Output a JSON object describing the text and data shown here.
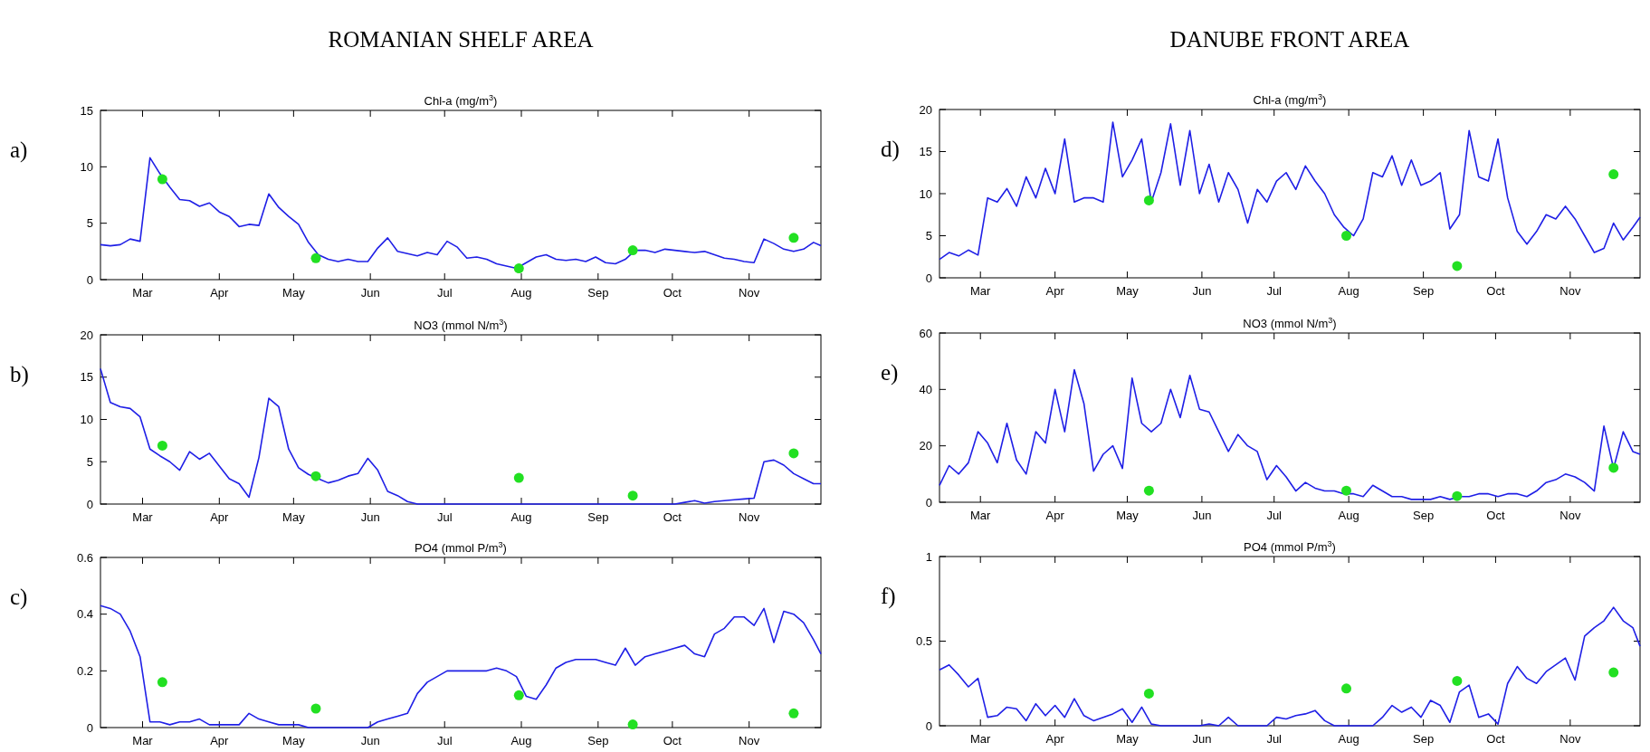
{
  "chart_data": [
    {
      "type": "line",
      "subtitle": "ROMANIAN SHELF AREA",
      "title": "Chl-a (mg/m$^{3}$)",
      "annotations": [
        "a)"
      ],
      "xlim": [
        "--02-12",
        "--11-30"
      ],
      "xticks": [
        {
          "value": "--03-01",
          "label": "Mar"
        },
        {
          "value": "--04-01",
          "label": "Apr"
        },
        {
          "value": "--05-01",
          "label": "May"
        },
        {
          "value": "--06-01",
          "label": "Jun"
        },
        {
          "value": "--07-01",
          "label": "Jul"
        },
        {
          "value": "--08-01",
          "label": "Aug"
        },
        {
          "value": "--09-01",
          "label": "Sep"
        },
        {
          "value": "--10-01",
          "label": "Oct"
        },
        {
          "value": "--11-01",
          "label": "Nov"
        }
      ],
      "ylim": [
        0,
        15
      ],
      "yticks": [
        0,
        5,
        10,
        15
      ],
      "x": [
        "--02-12",
        "--02-16",
        "--02-20",
        "--02-24",
        "--02-28",
        "--03-04",
        "--03-08",
        "--03-12",
        "--03-16",
        "--03-20",
        "--03-24",
        "--03-28",
        "--04-01",
        "--04-05",
        "--04-09",
        "--04-13",
        "--04-17",
        "--04-21",
        "--04-25",
        "--04-29",
        "--05-03",
        "--05-07",
        "--05-11",
        "--05-15",
        "--05-19",
        "--05-23",
        "--05-27",
        "--05-31",
        "--06-04",
        "--06-08",
        "--06-12",
        "--06-16",
        "--06-20",
        "--06-24",
        "--06-28",
        "--07-02",
        "--07-06",
        "--07-10",
        "--07-14",
        "--07-18",
        "--07-22",
        "--07-26",
        "--07-30",
        "--08-03",
        "--08-07",
        "--08-11",
        "--08-15",
        "--08-19",
        "--08-23",
        "--08-27",
        "--08-31",
        "--09-04",
        "--09-08",
        "--09-12",
        "--09-16",
        "--09-20",
        "--09-24",
        "--09-28",
        "--10-02",
        "--10-06",
        "--10-10",
        "--10-14",
        "--10-18",
        "--10-22",
        "--10-26",
        "--10-30",
        "--11-03",
        "--11-07",
        "--11-11",
        "--11-15",
        "--11-19",
        "--11-23",
        "--11-27",
        "--11-30"
      ],
      "series": [
        {
          "color": "#1f1fe6",
          "values": [
            3.1,
            3.0,
            3.1,
            3.6,
            3.4,
            10.8,
            9.4,
            8.2,
            7.1,
            7.0,
            6.5,
            6.8,
            6.0,
            5.6,
            4.7,
            4.9,
            4.8,
            7.6,
            6.4,
            5.6,
            4.9,
            3.3,
            2.2,
            1.8,
            1.6,
            1.8,
            1.6,
            1.6,
            2.8,
            3.7,
            2.5,
            2.3,
            2.1,
            2.4,
            2.2,
            3.4,
            2.9,
            1.9,
            2.0,
            1.8,
            1.4,
            1.2,
            1.0,
            1.5,
            2.0,
            2.2,
            1.8,
            1.7,
            1.8,
            1.6,
            2.0,
            1.5,
            1.4,
            1.8,
            2.6,
            2.6,
            2.4,
            2.7,
            2.6,
            2.5,
            2.4,
            2.5,
            2.2,
            1.9,
            1.8,
            1.6,
            1.5,
            3.6,
            3.2,
            2.7,
            2.5,
            2.7,
            3.3,
            3.0
          ]
        },
        {
          "type": "scatter",
          "color": "#22e022",
          "marker": "circle",
          "x": [
            "--03-09",
            "--05-10",
            "--07-31",
            "--09-15",
            "--11-19"
          ],
          "values": [
            8.9,
            1.9,
            1.0,
            2.6,
            3.7
          ]
        }
      ]
    },
    {
      "type": "line",
      "title": "NO3 (mmol N/m$^{3}$)",
      "annotations": [
        "b)"
      ],
      "xlim": [
        "--02-12",
        "--11-30"
      ],
      "xticks": [
        {
          "value": "--03-01",
          "label": "Mar"
        },
        {
          "value": "--04-01",
          "label": "Apr"
        },
        {
          "value": "--05-01",
          "label": "May"
        },
        {
          "value": "--06-01",
          "label": "Jun"
        },
        {
          "value": "--07-01",
          "label": "Jul"
        },
        {
          "value": "--08-01",
          "label": "Aug"
        },
        {
          "value": "--09-01",
          "label": "Sep"
        },
        {
          "value": "--10-01",
          "label": "Oct"
        },
        {
          "value": "--11-01",
          "label": "Nov"
        }
      ],
      "ylim": [
        0,
        20
      ],
      "yticks": [
        0,
        5,
        10,
        15,
        20
      ],
      "x": [
        "--02-12",
        "--02-16",
        "--02-20",
        "--02-24",
        "--02-28",
        "--03-04",
        "--03-08",
        "--03-12",
        "--03-16",
        "--03-20",
        "--03-24",
        "--03-28",
        "--04-01",
        "--04-05",
        "--04-09",
        "--04-13",
        "--04-17",
        "--04-21",
        "--04-25",
        "--04-29",
        "--05-03",
        "--05-07",
        "--05-11",
        "--05-15",
        "--05-19",
        "--05-23",
        "--05-27",
        "--05-31",
        "--06-04",
        "--06-08",
        "--06-12",
        "--06-16",
        "--06-20",
        "--06-24",
        "--06-28",
        "--07-02",
        "--07-06",
        "--07-10",
        "--07-14",
        "--07-18",
        "--07-22",
        "--07-26",
        "--07-30",
        "--08-03",
        "--08-07",
        "--08-11",
        "--08-15",
        "--08-19",
        "--08-23",
        "--08-27",
        "--08-31",
        "--09-04",
        "--09-08",
        "--09-12",
        "--09-16",
        "--09-20",
        "--09-24",
        "--09-28",
        "--10-02",
        "--10-06",
        "--10-10",
        "--10-14",
        "--10-18",
        "--10-22",
        "--10-26",
        "--10-30",
        "--11-03",
        "--11-07",
        "--11-11",
        "--11-15",
        "--11-19",
        "--11-23",
        "--11-27",
        "--11-30"
      ],
      "series": [
        {
          "color": "#1f1fe6",
          "values": [
            16,
            12,
            11.5,
            11.3,
            10.3,
            6.5,
            5.7,
            5.0,
            4.0,
            6.2,
            5.3,
            6.0,
            4.5,
            3.0,
            2.4,
            0.8,
            5.5,
            12.5,
            11.5,
            6.5,
            4.3,
            3.5,
            3.0,
            2.5,
            2.8,
            3.3,
            3.6,
            5.4,
            4.0,
            1.5,
            1.0,
            0.3,
            0,
            0,
            0,
            0,
            0,
            0,
            0,
            0,
            0,
            0,
            0,
            0,
            0,
            0,
            0,
            0,
            0,
            0,
            0,
            0,
            0,
            0,
            0,
            0,
            0,
            0,
            0,
            0.2,
            0.4,
            0.1,
            0.3,
            0.4,
            0.5,
            0.6,
            0.7,
            5.0,
            5.2,
            4.6,
            3.6,
            3.0,
            2.4,
            2.4
          ]
        },
        {
          "type": "scatter",
          "color": "#22e022",
          "marker": "circle",
          "x": [
            "--03-09",
            "--05-10",
            "--07-31",
            "--09-15",
            "--11-19"
          ],
          "values": [
            6.9,
            3.3,
            3.1,
            1.0,
            6.0
          ]
        }
      ]
    },
    {
      "type": "line",
      "title": "PO4 (mmol P/m$^{3}$)",
      "annotations": [
        "c)"
      ],
      "xlim": [
        "--02-12",
        "--11-30"
      ],
      "xticks": [
        {
          "value": "--03-01",
          "label": "Mar"
        },
        {
          "value": "--04-01",
          "label": "Apr"
        },
        {
          "value": "--05-01",
          "label": "May"
        },
        {
          "value": "--06-01",
          "label": "Jun"
        },
        {
          "value": "--07-01",
          "label": "Jul"
        },
        {
          "value": "--08-01",
          "label": "Aug"
        },
        {
          "value": "--09-01",
          "label": "Sep"
        },
        {
          "value": "--10-01",
          "label": "Oct"
        },
        {
          "value": "--11-01",
          "label": "Nov"
        }
      ],
      "ylim": [
        0,
        0.6
      ],
      "yticks": [
        0,
        0.2,
        0.4,
        0.6
      ],
      "x": [
        "--02-12",
        "--02-16",
        "--02-20",
        "--02-24",
        "--02-28",
        "--03-04",
        "--03-08",
        "--03-12",
        "--03-16",
        "--03-20",
        "--03-24",
        "--03-28",
        "--04-01",
        "--04-05",
        "--04-09",
        "--04-13",
        "--04-17",
        "--04-21",
        "--04-25",
        "--04-29",
        "--05-03",
        "--05-07",
        "--05-11",
        "--05-15",
        "--05-19",
        "--05-23",
        "--05-27",
        "--05-31",
        "--06-04",
        "--06-08",
        "--06-12",
        "--06-16",
        "--06-20",
        "--06-24",
        "--06-28",
        "--07-02",
        "--07-06",
        "--07-10",
        "--07-14",
        "--07-18",
        "--07-22",
        "--07-26",
        "--07-30",
        "--08-03",
        "--08-07",
        "--08-11",
        "--08-15",
        "--08-19",
        "--08-23",
        "--08-27",
        "--08-31",
        "--09-04",
        "--09-08",
        "--09-12",
        "--09-16",
        "--09-20",
        "--09-24",
        "--09-28",
        "--10-02",
        "--10-06",
        "--10-10",
        "--10-14",
        "--10-18",
        "--10-22",
        "--10-26",
        "--10-30",
        "--11-03",
        "--11-07",
        "--11-11",
        "--11-15",
        "--11-19",
        "--11-23",
        "--11-27",
        "--11-30"
      ],
      "series": [
        {
          "color": "#1f1fe6",
          "values": [
            0.43,
            0.42,
            0.4,
            0.34,
            0.25,
            0.02,
            0.02,
            0.01,
            0.02,
            0.02,
            0.03,
            0.01,
            0.01,
            0.01,
            0.01,
            0.05,
            0.03,
            0.02,
            0.01,
            0.01,
            0.01,
            0,
            0,
            0,
            0,
            0,
            0,
            0,
            0.02,
            0.03,
            0.04,
            0.05,
            0.12,
            0.16,
            0.18,
            0.2,
            0.2,
            0.2,
            0.2,
            0.2,
            0.21,
            0.2,
            0.18,
            0.11,
            0.1,
            0.15,
            0.21,
            0.23,
            0.24,
            0.24,
            0.24,
            0.23,
            0.22,
            0.28,
            0.22,
            0.25,
            0.26,
            0.27,
            0.28,
            0.29,
            0.26,
            0.25,
            0.33,
            0.35,
            0.39,
            0.39,
            0.36,
            0.42,
            0.3,
            0.41,
            0.4,
            0.37,
            0.31,
            0.26
          ]
        },
        {
          "type": "scatter",
          "color": "#22e022",
          "marker": "circle",
          "x": [
            "--03-09",
            "--05-10",
            "--07-31",
            "--09-15",
            "--11-19"
          ],
          "values": [
            0.16,
            0.067,
            0.114,
            0.011,
            0.05
          ]
        }
      ]
    },
    {
      "type": "line",
      "subtitle": "DANUBE FRONT AREA",
      "title": "Chl-a (mg/m$^{3}$)",
      "annotations": [
        "d)"
      ],
      "xlim": [
        "--02-12",
        "--11-30"
      ],
      "xticks": [
        {
          "value": "--03-01",
          "label": "Mar"
        },
        {
          "value": "--04-01",
          "label": "Apr"
        },
        {
          "value": "--05-01",
          "label": "May"
        },
        {
          "value": "--06-01",
          "label": "Jun"
        },
        {
          "value": "--07-01",
          "label": "Jul"
        },
        {
          "value": "--08-01",
          "label": "Aug"
        },
        {
          "value": "--09-01",
          "label": "Sep"
        },
        {
          "value": "--10-01",
          "label": "Oct"
        },
        {
          "value": "--11-01",
          "label": "Nov"
        }
      ],
      "ylim": [
        0,
        20
      ],
      "yticks": [
        0,
        5,
        10,
        15,
        20
      ],
      "x": [
        "--02-12",
        "--02-16",
        "--02-20",
        "--02-24",
        "--02-28",
        "--03-04",
        "--03-08",
        "--03-12",
        "--03-16",
        "--03-20",
        "--03-24",
        "--03-28",
        "--04-01",
        "--04-05",
        "--04-09",
        "--04-13",
        "--04-17",
        "--04-21",
        "--04-25",
        "--04-29",
        "--05-03",
        "--05-07",
        "--05-11",
        "--05-15",
        "--05-19",
        "--05-23",
        "--05-27",
        "--05-31",
        "--06-04",
        "--06-08",
        "--06-12",
        "--06-16",
        "--06-20",
        "--06-24",
        "--06-28",
        "--07-02",
        "--07-06",
        "--07-10",
        "--07-14",
        "--07-18",
        "--07-22",
        "--07-26",
        "--07-30",
        "--08-03",
        "--08-07",
        "--08-11",
        "--08-15",
        "--08-19",
        "--08-23",
        "--08-27",
        "--08-31",
        "--09-04",
        "--09-08",
        "--09-12",
        "--09-16",
        "--09-20",
        "--09-24",
        "--09-28",
        "--10-02",
        "--10-06",
        "--10-10",
        "--10-14",
        "--10-18",
        "--10-22",
        "--10-26",
        "--10-30",
        "--11-03",
        "--11-07",
        "--11-11",
        "--11-15",
        "--11-19",
        "--11-23",
        "--11-27",
        "--11-30"
      ],
      "series": [
        {
          "color": "#1f1fe6",
          "values": [
            2.2,
            3.0,
            2.6,
            3.3,
            2.7,
            9.5,
            9.0,
            10.6,
            8.5,
            12.0,
            9.5,
            13.0,
            10.0,
            16.5,
            9.0,
            9.5,
            9.5,
            9.0,
            18.5,
            12.0,
            14.0,
            16.5,
            9.0,
            12.5,
            18.3,
            11.0,
            17.5,
            10.0,
            13.5,
            9.0,
            12.5,
            10.5,
            6.5,
            10.5,
            9.0,
            11.5,
            12.5,
            10.5,
            13.3,
            11.5,
            10.0,
            7.5,
            6.0,
            5.0,
            7.0,
            12.5,
            12.0,
            14.5,
            11.0,
            14.0,
            11.0,
            11.5,
            12.5,
            5.8,
            7.5,
            17.5,
            12.0,
            11.5,
            16.5,
            9.5,
            5.5,
            4.0,
            5.5,
            7.5,
            7.0,
            8.5,
            7.0,
            5.0,
            3.0,
            3.5,
            6.5,
            4.5,
            6.0,
            7.2
          ]
        },
        {
          "type": "scatter",
          "color": "#22e022",
          "marker": "circle",
          "x": [
            "--05-10",
            "--07-31",
            "--09-15",
            "--11-19"
          ],
          "values": [
            9.2,
            5.0,
            1.4,
            12.3
          ]
        }
      ]
    },
    {
      "type": "line",
      "title": "NO3 (mmol N/m$^{3}$)",
      "annotations": [
        "e)"
      ],
      "xlim": [
        "--02-12",
        "--11-30"
      ],
      "xticks": [
        {
          "value": "--03-01",
          "label": "Mar"
        },
        {
          "value": "--04-01",
          "label": "Apr"
        },
        {
          "value": "--05-01",
          "label": "May"
        },
        {
          "value": "--06-01",
          "label": "Jun"
        },
        {
          "value": "--07-01",
          "label": "Jul"
        },
        {
          "value": "--08-01",
          "label": "Aug"
        },
        {
          "value": "--09-01",
          "label": "Sep"
        },
        {
          "value": "--10-01",
          "label": "Oct"
        },
        {
          "value": "--11-01",
          "label": "Nov"
        }
      ],
      "ylim": [
        0,
        60
      ],
      "yticks": [
        0,
        20,
        40,
        60
      ],
      "x": [
        "--02-12",
        "--02-16",
        "--02-20",
        "--02-24",
        "--02-28",
        "--03-04",
        "--03-08",
        "--03-12",
        "--03-16",
        "--03-20",
        "--03-24",
        "--03-28",
        "--04-01",
        "--04-05",
        "--04-09",
        "--04-13",
        "--04-17",
        "--04-21",
        "--04-25",
        "--04-29",
        "--05-03",
        "--05-07",
        "--05-11",
        "--05-15",
        "--05-19",
        "--05-23",
        "--05-27",
        "--05-31",
        "--06-04",
        "--06-08",
        "--06-12",
        "--06-16",
        "--06-20",
        "--06-24",
        "--06-28",
        "--07-02",
        "--07-06",
        "--07-10",
        "--07-14",
        "--07-18",
        "--07-22",
        "--07-26",
        "--07-30",
        "--08-03",
        "--08-07",
        "--08-11",
        "--08-15",
        "--08-19",
        "--08-23",
        "--08-27",
        "--08-31",
        "--09-04",
        "--09-08",
        "--09-12",
        "--09-16",
        "--09-20",
        "--09-24",
        "--09-28",
        "--10-02",
        "--10-06",
        "--10-10",
        "--10-14",
        "--10-18",
        "--10-22",
        "--10-26",
        "--10-30",
        "--11-03",
        "--11-07",
        "--11-11",
        "--11-15",
        "--11-19",
        "--11-23",
        "--11-27",
        "--11-30"
      ],
      "series": [
        {
          "color": "#1f1fe6",
          "values": [
            6,
            13,
            10,
            14,
            25,
            21,
            14,
            28,
            15,
            10,
            25,
            21,
            40,
            25,
            47,
            35,
            11,
            17,
            20,
            12,
            44,
            28,
            25,
            28,
            40,
            30,
            45,
            33,
            32,
            25,
            18,
            24,
            20,
            18,
            8,
            13,
            9,
            4,
            7,
            5,
            4,
            4,
            3,
            3,
            2,
            6,
            4,
            2,
            2,
            1,
            1,
            1,
            2,
            1,
            2,
            2,
            3,
            3,
            2,
            3,
            3,
            2,
            4,
            7,
            8,
            10,
            9,
            7,
            4,
            27,
            12,
            25,
            18,
            17
          ]
        },
        {
          "type": "scatter",
          "color": "#22e022",
          "marker": "circle",
          "x": [
            "--05-10",
            "--07-31",
            "--09-15",
            "--11-19"
          ],
          "values": [
            4.1,
            4.1,
            2.2,
            12.2
          ]
        }
      ]
    },
    {
      "type": "line",
      "title": "PO4 (mmol P/m$^{3}$)",
      "annotations": [
        "f)"
      ],
      "xlim": [
        "--02-12",
        "--11-30"
      ],
      "xticks": [
        {
          "value": "--03-01",
          "label": "Mar"
        },
        {
          "value": "--04-01",
          "label": "Apr"
        },
        {
          "value": "--05-01",
          "label": "May"
        },
        {
          "value": "--06-01",
          "label": "Jun"
        },
        {
          "value": "--07-01",
          "label": "Jul"
        },
        {
          "value": "--08-01",
          "label": "Aug"
        },
        {
          "value": "--09-01",
          "label": "Sep"
        },
        {
          "value": "--10-01",
          "label": "Oct"
        },
        {
          "value": "--11-01",
          "label": "Nov"
        }
      ],
      "ylim": [
        0,
        1
      ],
      "yticks": [
        0,
        0.5,
        1
      ],
      "x": [
        "--02-12",
        "--02-16",
        "--02-20",
        "--02-24",
        "--02-28",
        "--03-04",
        "--03-08",
        "--03-12",
        "--03-16",
        "--03-20",
        "--03-24",
        "--03-28",
        "--04-01",
        "--04-05",
        "--04-09",
        "--04-13",
        "--04-17",
        "--04-21",
        "--04-25",
        "--04-29",
        "--05-03",
        "--05-07",
        "--05-11",
        "--05-15",
        "--05-19",
        "--05-23",
        "--05-27",
        "--05-31",
        "--06-04",
        "--06-08",
        "--06-12",
        "--06-16",
        "--06-20",
        "--06-24",
        "--06-28",
        "--07-02",
        "--07-06",
        "--07-10",
        "--07-14",
        "--07-18",
        "--07-22",
        "--07-26",
        "--07-30",
        "--08-03",
        "--08-07",
        "--08-11",
        "--08-15",
        "--08-19",
        "--08-23",
        "--08-27",
        "--08-31",
        "--09-04",
        "--09-08",
        "--09-12",
        "--09-16",
        "--09-20",
        "--09-24",
        "--09-28",
        "--10-02",
        "--10-06",
        "--10-10",
        "--10-14",
        "--10-18",
        "--10-22",
        "--10-26",
        "--10-30",
        "--11-03",
        "--11-07",
        "--11-11",
        "--11-15",
        "--11-19",
        "--11-23",
        "--11-27",
        "--11-30"
      ],
      "series": [
        {
          "color": "#1f1fe6",
          "values": [
            0.33,
            0.36,
            0.3,
            0.23,
            0.28,
            0.05,
            0.06,
            0.11,
            0.1,
            0.03,
            0.13,
            0.06,
            0.12,
            0.05,
            0.16,
            0.06,
            0.03,
            0.05,
            0.07,
            0.1,
            0.02,
            0.11,
            0.01,
            0,
            0,
            0,
            0,
            0,
            0.01,
            0,
            0.05,
            0,
            0,
            0,
            0,
            0.05,
            0.04,
            0.06,
            0.07,
            0.09,
            0.03,
            0,
            0,
            0,
            0,
            0,
            0.05,
            0.12,
            0.08,
            0.11,
            0.05,
            0.15,
            0.12,
            0.02,
            0.2,
            0.24,
            0.05,
            0.07,
            0.01,
            0.25,
            0.35,
            0.28,
            0.25,
            0.32,
            0.36,
            0.4,
            0.27,
            0.53,
            0.58,
            0.62,
            0.7,
            0.62,
            0.58,
            0.47
          ]
        },
        {
          "type": "scatter",
          "color": "#22e022",
          "marker": "circle",
          "x": [
            "--05-10",
            "--07-31",
            "--09-15",
            "--11-19"
          ],
          "values": [
            0.19,
            0.22,
            0.265,
            0.315
          ]
        }
      ]
    }
  ]
}
